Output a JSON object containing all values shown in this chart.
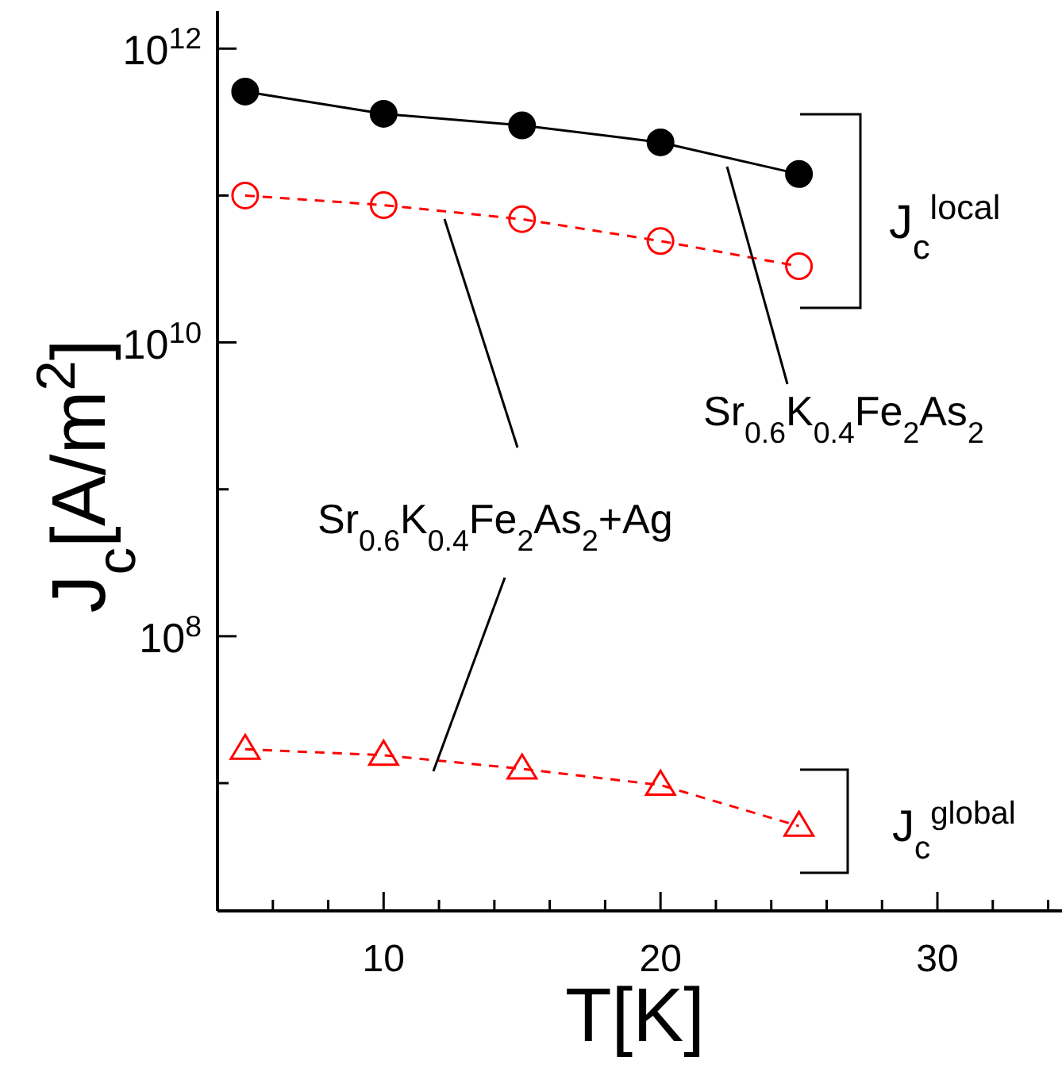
{
  "chart_data": {
    "type": "line",
    "xlabel": "T[K]",
    "ylabel": "J$_{c}$[A/m$^{2}$]",
    "log": "y",
    "x": [
      5,
      10,
      15,
      20,
      25
    ],
    "series": [
      {
        "color": "#000000",
        "marker": "circle",
        "line_style": "solid",
        "values": [
          510000000000.0,
          360000000000.0,
          300000000000.0,
          230000000000.0,
          140000000000.0
        ]
      },
      {
        "color": "#ff0000",
        "marker": "circle",
        "line_style": "dashed",
        "values": [
          100000000000.0,
          86000000000.0,
          69000000000.0,
          49000000000.0,
          33000000000.0
        ]
      },
      {
        "color": "#ff0000",
        "marker": "triangle",
        "line_style": "dashed",
        "values": [
          17000000.0,
          15500000.0,
          12500000.0,
          9700000.0,
          5100000.0
        ]
      }
    ],
    "xlim": [
      4,
      34.5
    ],
    "xticks": [
      {
        "value": 6,
        "label": null
      },
      {
        "value": 8,
        "label": null
      },
      10,
      {
        "value": 12,
        "label": null
      },
      {
        "value": 14,
        "label": null
      },
      {
        "value": 16,
        "label": null
      },
      {
        "value": 18,
        "label": null
      },
      20,
      {
        "value": 22,
        "label": null
      },
      {
        "value": 24,
        "label": null
      },
      {
        "value": 26,
        "label": null
      },
      {
        "value": 28,
        "label": null
      },
      30,
      {
        "value": 32,
        "label": null
      },
      {
        "value": 34,
        "label": null
      }
    ],
    "ylim": [
      1350000.0,
      1800000000000.0
    ],
    "yticks": [
      {
        "value": 10000000.0,
        "label": null
      },
      {
        "value": 100000000.0,
        "label": "10$^{8}$"
      },
      {
        "value": 1000000000.0,
        "label": null
      },
      {
        "value": 10000000000.0,
        "label": "10$^{10}$"
      },
      {
        "value": 100000000000.0,
        "label": null
      },
      {
        "value": 1000000000000.0,
        "label": "10$^{12}$"
      }
    ],
    "annotations": [
      "J$_{c}$$^{local}$",
      "Sr$_{0.6}$K$_{0.4}$Fe$_{2}$As$_{2}$",
      "Sr$_{0.6}$K$_{0.4}$Fe$_{2}$As$_{2}$+Ag",
      "J$_{c}$$^{global}$"
    ]
  }
}
